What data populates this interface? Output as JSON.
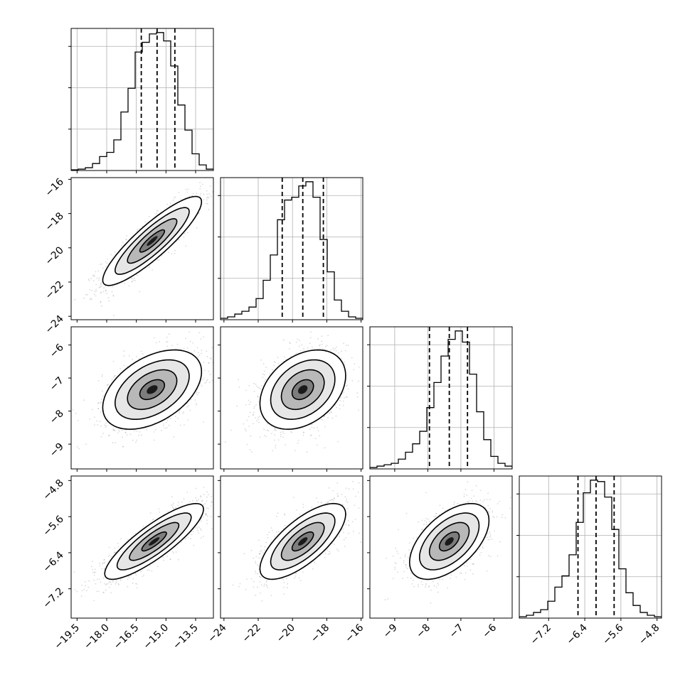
{
  "chart_data": {
    "type": "corner",
    "title": "",
    "grid": true,
    "parameters": [
      {
        "index": 0,
        "range": [
          -19.8,
          -12.6
        ],
        "ticks": [
          -19.5,
          -18.0,
          -16.5,
          -15.0,
          -13.5
        ],
        "tick_labels": [
          "−19.5",
          "−18.0",
          "−16.5",
          "−15.0",
          "−13.5"
        ],
        "quantiles": [
          -16.25,
          -15.45,
          -14.55
        ],
        "histogram": {
          "bin_edges": [
            -19.8,
            -19.44,
            -19.08,
            -18.72,
            -18.36,
            -18.0,
            -17.64,
            -17.28,
            -16.92,
            -16.56,
            -16.2,
            -15.84,
            -15.48,
            -15.12,
            -14.76,
            -14.4,
            -14.04,
            -13.68,
            -13.32,
            -12.96,
            -12.6
          ],
          "relative_counts": [
            0.005,
            0.01,
            0.02,
            0.05,
            0.1,
            0.13,
            0.22,
            0.42,
            0.59,
            0.85,
            0.92,
            0.98,
            0.99,
            0.93,
            0.75,
            0.47,
            0.29,
            0.12,
            0.04,
            0.01
          ]
        }
      },
      {
        "index": 1,
        "range": [
          -24.2,
          -15.9
        ],
        "ticks": [
          -24,
          -22,
          -20,
          -18,
          -16
        ],
        "tick_labels": [
          "−24",
          "−22",
          "−20",
          "−18",
          "−16"
        ],
        "quantiles": [
          -20.6,
          -19.4,
          -18.2
        ],
        "histogram": {
          "bin_edges": [
            -24.2,
            -23.785,
            -23.37,
            -22.955,
            -22.54,
            -22.125,
            -21.71,
            -21.295,
            -20.88,
            -20.465,
            -20.05,
            -19.635,
            -19.22,
            -18.805,
            -18.39,
            -17.975,
            -17.56,
            -17.145,
            -16.73,
            -16.315,
            -15.9
          ],
          "relative_counts": [
            0.01,
            0.02,
            0.04,
            0.06,
            0.09,
            0.15,
            0.28,
            0.46,
            0.71,
            0.85,
            0.87,
            0.95,
            0.98,
            0.87,
            0.57,
            0.34,
            0.14,
            0.06,
            0.02,
            0.01
          ]
        }
      },
      {
        "index": 2,
        "range": [
          -9.75,
          -5.45
        ],
        "ticks": [
          -9,
          -8,
          -7,
          -6
        ],
        "tick_labels": [
          "−9",
          "−8",
          "−7",
          "−6"
        ],
        "quantiles": [
          -7.95,
          -7.35,
          -6.8
        ],
        "histogram": {
          "bin_edges": [
            -9.75,
            -9.535,
            -9.32,
            -9.105,
            -8.89,
            -8.675,
            -8.46,
            -8.245,
            -8.03,
            -7.815,
            -7.6,
            -7.385,
            -7.17,
            -6.955,
            -6.74,
            -6.525,
            -6.31,
            -6.095,
            -5.88,
            -5.665,
            -5.45
          ],
          "relative_counts": [
            0.01,
            0.02,
            0.03,
            0.04,
            0.07,
            0.12,
            0.18,
            0.27,
            0.44,
            0.62,
            0.81,
            0.93,
            0.99,
            0.91,
            0.68,
            0.41,
            0.21,
            0.09,
            0.04,
            0.02
          ]
        }
      },
      {
        "index": 3,
        "range": [
          -7.85,
          -4.7
        ],
        "ticks": [
          -7.2,
          -6.4,
          -5.6,
          -4.8
        ],
        "tick_labels": [
          "−7.2",
          "−6.4",
          "−5.6",
          "−4.8"
        ],
        "quantiles": [
          -6.55,
          -6.15,
          -5.75
        ],
        "histogram": {
          "bin_edges": [
            -7.85,
            -7.6925,
            -7.535,
            -7.3775,
            -7.22,
            -7.0625,
            -6.905,
            -6.7475,
            -6.59,
            -6.4325,
            -6.275,
            -6.1175,
            -5.96,
            -5.8025,
            -5.645,
            -5.4875,
            -5.33,
            -5.1725,
            -5.015,
            -4.8575,
            -4.7
          ],
          "relative_counts": [
            0.01,
            0.02,
            0.04,
            0.06,
            0.12,
            0.22,
            0.3,
            0.45,
            0.68,
            0.89,
            0.98,
            0.97,
            0.86,
            0.63,
            0.35,
            0.18,
            0.09,
            0.04,
            0.02,
            0.01
          ]
        }
      }
    ],
    "joint": [
      {
        "x_param": 0,
        "y_param": 1,
        "center": [
          -15.7,
          -19.6
        ],
        "sd": [
          1.25,
          1.3
        ],
        "corr": 0.88
      },
      {
        "x_param": 0,
        "y_param": 2,
        "center": [
          -15.7,
          -7.35
        ],
        "sd": [
          1.25,
          0.6
        ],
        "corr": 0.45
      },
      {
        "x_param": 1,
        "y_param": 2,
        "center": [
          -19.4,
          -7.35
        ],
        "sd": [
          1.25,
          0.6
        ],
        "corr": 0.35
      },
      {
        "x_param": 0,
        "y_param": 3,
        "center": [
          -15.6,
          -6.15
        ],
        "sd": [
          1.25,
          0.42
        ],
        "corr": 0.85
      },
      {
        "x_param": 1,
        "y_param": 3,
        "center": [
          -19.4,
          -6.15
        ],
        "sd": [
          1.25,
          0.42
        ],
        "corr": 0.72
      },
      {
        "x_param": 2,
        "y_param": 3,
        "center": [
          -7.35,
          -6.15
        ],
        "sd": [
          0.6,
          0.42
        ],
        "corr": 0.55
      }
    ],
    "contour_levels_sigma": [
      0.5,
      1.0,
      1.5,
      2.0
    ]
  }
}
